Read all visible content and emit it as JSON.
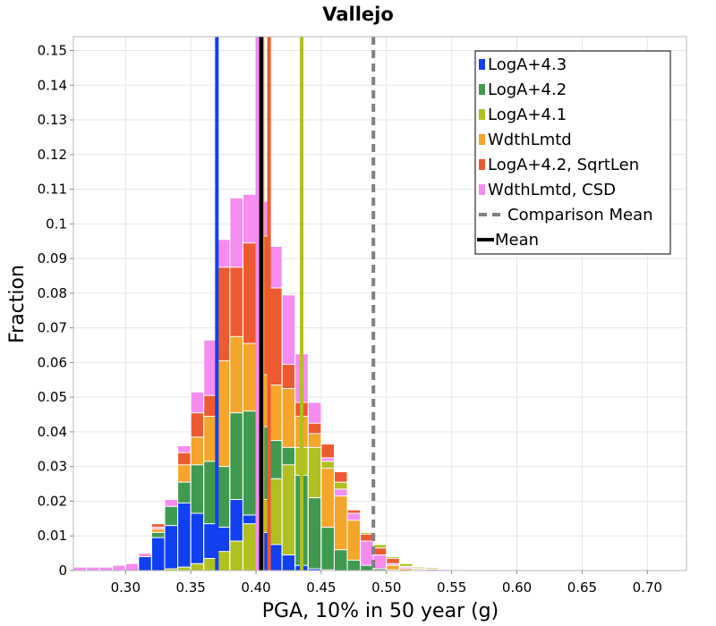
{
  "chart_data": {
    "type": "bar",
    "title": "Vallejo",
    "xlabel": "PGA, 10% in 50 year (g)",
    "ylabel": "Fraction",
    "xlim": [
      0.26,
      0.73
    ],
    "ylim": [
      0,
      0.154
    ],
    "grid": true,
    "legend_position": "top-right",
    "xticks": [
      0.3,
      0.35,
      0.4,
      0.45,
      0.5,
      0.55,
      0.6,
      0.65,
      0.7
    ],
    "xtick_labels": [
      "0.30",
      "0.35",
      "0.40",
      "0.45",
      "0.50",
      "0.55",
      "0.60",
      "0.65",
      "0.70"
    ],
    "yticks": [
      0,
      0.01,
      0.02,
      0.03,
      0.04,
      0.05,
      0.06,
      0.07,
      0.08,
      0.09,
      0.1,
      0.11,
      0.12,
      0.13,
      0.14,
      0.15
    ],
    "ytick_labels": [
      "0",
      "0.01",
      "0.02",
      "0.03",
      "0.04",
      "0.05",
      "0.06",
      "0.07",
      "0.08",
      "0.09",
      "0.1",
      "0.11",
      "0.12",
      "0.13",
      "0.14",
      "0.15"
    ],
    "bin_width": 0.01,
    "x": [
      0.265,
      0.275,
      0.285,
      0.295,
      0.305,
      0.315,
      0.325,
      0.335,
      0.345,
      0.355,
      0.365,
      0.375,
      0.385,
      0.395,
      0.405,
      0.415,
      0.425,
      0.435,
      0.445,
      0.455,
      0.465,
      0.475,
      0.485,
      0.495,
      0.505,
      0.515,
      0.525,
      0.535,
      0.545,
      0.555,
      0.565,
      0.575
    ],
    "series": [
      {
        "name": "LogA+4.3",
        "color": "#1040f0",
        "values": [
          0.001,
          0.001,
          0.001,
          0.0015,
          0.002,
          0.004,
          0.0095,
          0.013,
          0.0195,
          0.0165,
          0.0135,
          0.0125,
          0.0205,
          0.016,
          0.011,
          0.0075,
          0.0045,
          0.0015,
          0.0005,
          0.0002,
          0,
          0,
          0,
          0,
          0,
          0,
          0,
          0,
          0,
          0,
          0,
          0
        ]
      },
      {
        "name": "LogA+4.2",
        "color": "#3f9a50",
        "values": [
          0.001,
          0.001,
          0.001,
          0.0015,
          0.002,
          0.005,
          0.011,
          0.0185,
          0.0255,
          0.0305,
          0.0315,
          0.03,
          0.0455,
          0.046,
          0.0415,
          0.0375,
          0.0355,
          0.0275,
          0.021,
          0.0125,
          0.006,
          0.003,
          0.0015,
          0.0005,
          0.0002,
          0,
          0,
          0,
          0,
          0,
          0,
          0
        ]
      },
      {
        "name": "LogA+4.1",
        "color": "#b0c020",
        "values": [
          0,
          0,
          0,
          0,
          0,
          0,
          0,
          0.0005,
          0.001,
          0.002,
          0.0035,
          0.0055,
          0.0085,
          0.0135,
          0.0205,
          0.0265,
          0.0305,
          0.0355,
          0.0355,
          0.0315,
          0.0255,
          0.0175,
          0.011,
          0.0075,
          0.004,
          0.002,
          0.001,
          0.0008,
          0.0005,
          0.0004,
          0.0003,
          0.0002
        ]
      },
      {
        "name": "WdthLmtd",
        "color": "#f4a52a",
        "values": [
          0.001,
          0.001,
          0.001,
          0.0015,
          0.002,
          0.005,
          0.012,
          0.0205,
          0.0305,
          0.0385,
          0.0445,
          0.0605,
          0.0675,
          0.0655,
          0.0565,
          0.0535,
          0.0525,
          0.0445,
          0.0395,
          0.0295,
          0.0215,
          0.0145,
          0.0085,
          0.0045,
          0.0015,
          0.0005,
          0.0002,
          0,
          0,
          0,
          0,
          0
        ]
      },
      {
        "name": "LogA+4.2, SqrtLen",
        "color": "#ee5a30",
        "values": [
          0.001,
          0.001,
          0.001,
          0.0015,
          0.002,
          0.005,
          0.0135,
          0.0205,
          0.034,
          0.0455,
          0.0505,
          0.0875,
          0.0875,
          0.0945,
          0.0965,
          0.0815,
          0.0595,
          0.0485,
          0.0425,
          0.0365,
          0.0285,
          0.0175,
          0.0105,
          0.0065,
          0.0035,
          0.0012,
          0.0005,
          0,
          0,
          0,
          0,
          0
        ]
      },
      {
        "name": "WdthLmtd, CSD",
        "color": "#f68cf0",
        "values": [
          0.001,
          0.001,
          0.001,
          0.0015,
          0.002,
          0.005,
          0.0125,
          0.0205,
          0.036,
          0.0515,
          0.0665,
          0.0955,
          0.1075,
          0.1085,
          0.1065,
          0.0935,
          0.0795,
          0.0625,
          0.0485,
          0.0325,
          0.0235,
          0.0165,
          0.0085,
          0.0045,
          0.002,
          0.001,
          0.0006,
          0.0004,
          0.0003,
          0.0002,
          0.0001,
          0
        ]
      }
    ],
    "lines": [
      {
        "kind": "mean",
        "series": "LogA+4.3",
        "x": 0.37,
        "color": "#1040f0"
      },
      {
        "kind": "mean",
        "series": "LogA+4.2",
        "x": 0.401,
        "color": "#3f9a50"
      },
      {
        "kind": "mean",
        "series": "LogA+4.1",
        "x": 0.435,
        "color": "#b0c020"
      },
      {
        "kind": "mean",
        "series": "WdthLmtd",
        "x": 0.405,
        "color": "#f4a52a"
      },
      {
        "kind": "mean",
        "series": "LogA+4.2, SqrtLen",
        "x": 0.41,
        "color": "#ee5a30"
      },
      {
        "kind": "mean",
        "series": "WdthLmtd, CSD",
        "x": 0.401,
        "color": "#f68cf0"
      },
      {
        "kind": "mean",
        "series": "Mean",
        "x": 0.404,
        "color": "#000000"
      },
      {
        "kind": "comparison",
        "series": "Comparison Mean",
        "x": 0.49,
        "color": "#808080"
      }
    ],
    "legend": [
      {
        "label": "LogA+4.3",
        "color": "#1040f0",
        "kind": "bar"
      },
      {
        "label": "LogA+4.2",
        "color": "#3f9a50",
        "kind": "bar"
      },
      {
        "label": "LogA+4.1",
        "color": "#b0c020",
        "kind": "bar"
      },
      {
        "label": "WdthLmtd",
        "color": "#f4a52a",
        "kind": "bar"
      },
      {
        "label": "LogA+4.2, SqrtLen",
        "color": "#ee5a30",
        "kind": "bar"
      },
      {
        "label": "WdthLmtd, CSD",
        "color": "#f68cf0",
        "kind": "bar"
      },
      {
        "label": "Comparison Mean",
        "color": "#808080",
        "kind": "dash"
      },
      {
        "label": "Mean",
        "color": "#000000",
        "kind": "line"
      }
    ]
  }
}
